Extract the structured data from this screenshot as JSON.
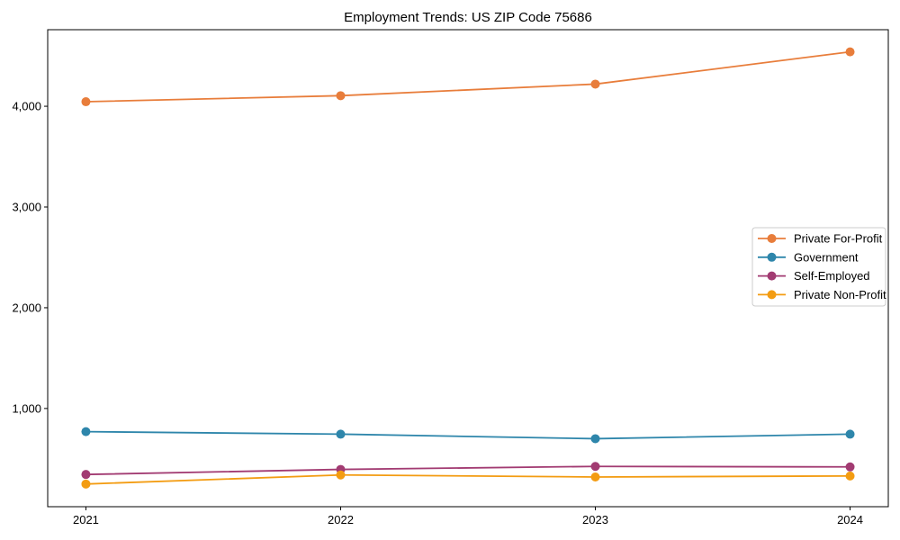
{
  "window": {
    "background": "#ffffff"
  },
  "chart_data": {
    "type": "line",
    "title": "Employment Trends: US ZIP Code 75686",
    "x": [
      2021,
      2022,
      2023,
      2024
    ],
    "x_tick_labels": [
      "2021",
      "2022",
      "2023",
      "2024"
    ],
    "y_ticks": [
      1000,
      2000,
      3000,
      4000
    ],
    "y_tick_labels": [
      "1,000",
      "2,000",
      "3,000",
      "4,000"
    ],
    "xlim": [
      2020.85,
      2024.15
    ],
    "ylim": [
      25,
      4760
    ],
    "grid": false,
    "frame": true,
    "marker": "circle",
    "marker_radius": 5,
    "line_width": 1.8,
    "legend": {
      "position": "right-middle",
      "border_color": "#cccccc",
      "background": "#ffffff"
    },
    "series": [
      {
        "name": "Private For-Profit",
        "color": "#E87D3B",
        "values": [
          4045,
          4105,
          4220,
          4540
        ]
      },
      {
        "name": "Government",
        "color": "#2E86AB",
        "values": [
          770,
          745,
          700,
          745
        ]
      },
      {
        "name": "Self-Employed",
        "color": "#A23B72",
        "values": [
          345,
          395,
          425,
          420
        ]
      },
      {
        "name": "Private Non-Profit",
        "color": "#F39C12",
        "values": [
          250,
          340,
          320,
          330
        ]
      }
    ]
  }
}
